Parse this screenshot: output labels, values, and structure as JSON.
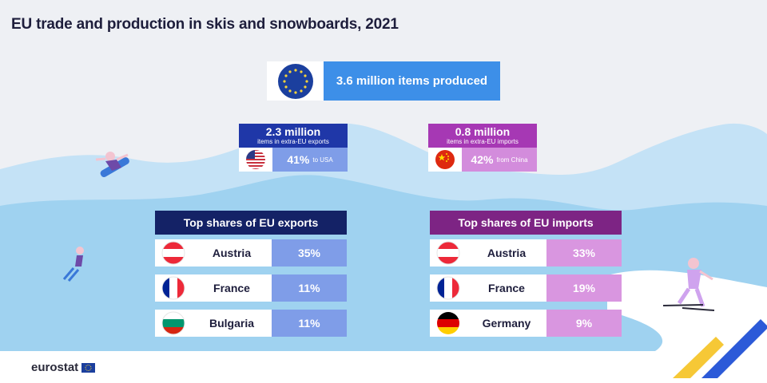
{
  "title": "EU trade and production in skis and snowboards, 2021",
  "production": {
    "label": "3.6 million items produced",
    "value_million": 3.6
  },
  "exports_extra_eu": {
    "amount": "2.3 million",
    "caption": "items in extra-EU exports",
    "share": "41%",
    "partner": "to USA"
  },
  "imports_extra_eu": {
    "amount": "0.8 million",
    "caption": "items in extra-EU imports",
    "share": "42%",
    "partner": "from China"
  },
  "chart_data": [
    {
      "type": "table",
      "title": "Top shares of EU exports",
      "categories": [
        "Austria",
        "France",
        "Bulgaria"
      ],
      "values": [
        35,
        11,
        11
      ],
      "labels": [
        "35%",
        "11%",
        "11%"
      ]
    },
    {
      "type": "table",
      "title": "Top shares of EU imports",
      "categories": [
        "Austria",
        "France",
        "Germany"
      ],
      "values": [
        33,
        19,
        9
      ],
      "labels": [
        "33%",
        "19%",
        "9%"
      ]
    }
  ],
  "colors": {
    "export_head": "#142266",
    "export_bar": "#7f9de8",
    "import_head": "#7d2484",
    "import_bar": "#d996e0",
    "produced": "#3d8fe8",
    "export_small_head": "#1f37a8",
    "import_small_head": "#a638b4",
    "import_small_bar": "#d38cdc"
  },
  "logo": {
    "text": "eurostat"
  }
}
